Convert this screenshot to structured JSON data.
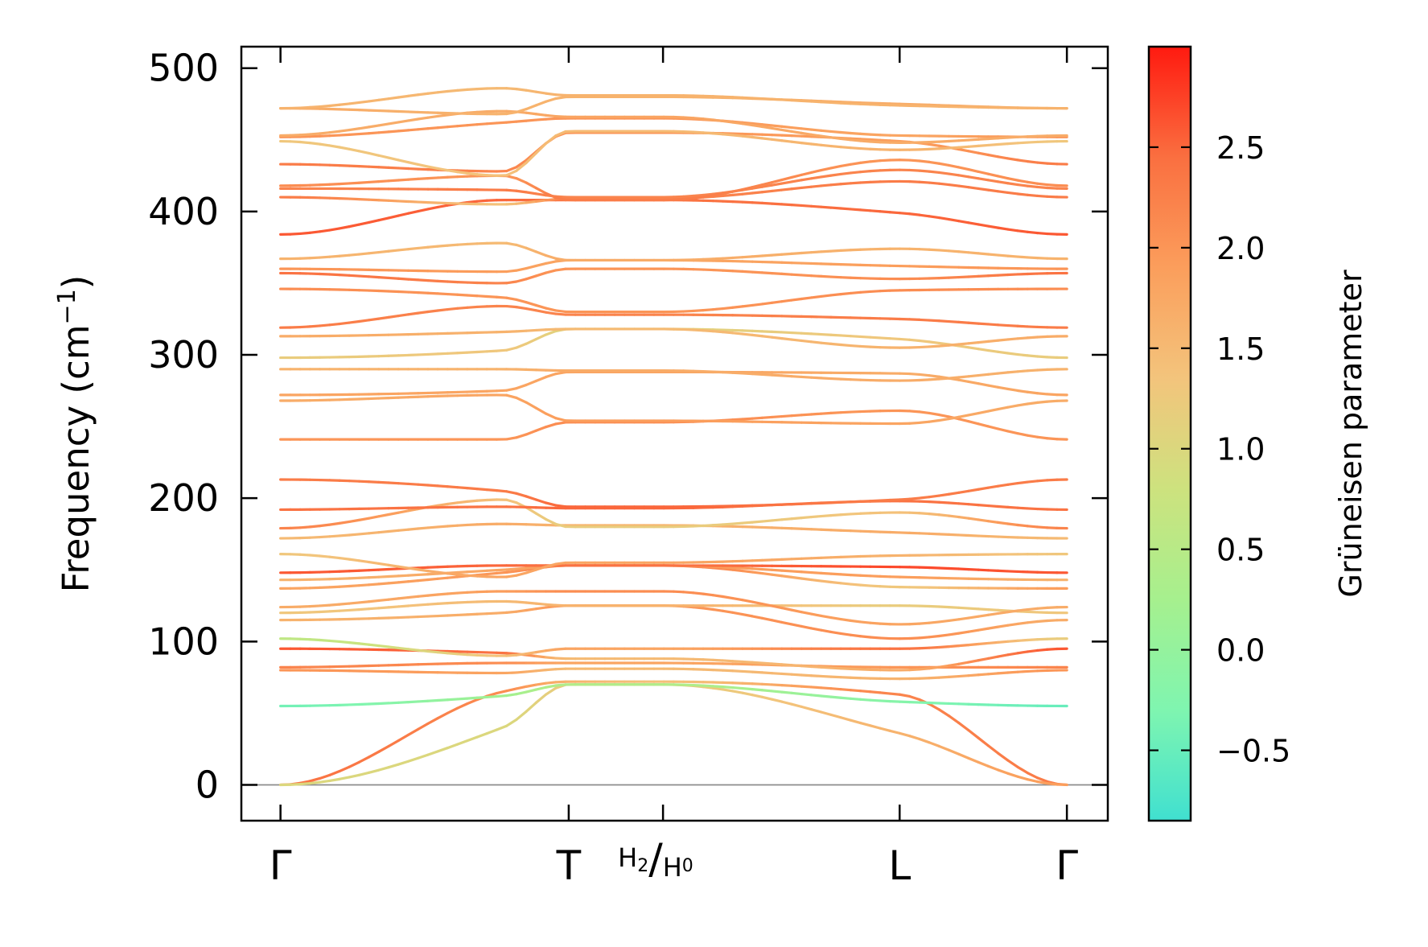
{
  "chart_data": {
    "type": "line",
    "ylabel_main": "Frequency (cm",
    "ylabel_sup": "−1",
    "ylabel_close": ")",
    "xlabel": "",
    "ylim": [
      -25,
      515
    ],
    "yticks": [
      0,
      100,
      200,
      300,
      400,
      500
    ],
    "ytick_labels": [
      "0",
      "100",
      "200",
      "300",
      "400",
      "500"
    ],
    "x_range": [
      -0.22,
      4.65
    ],
    "kpoints": [
      {
        "x": 0,
        "label": "Γ"
      },
      {
        "x": 1.62,
        "label": "T"
      },
      {
        "x": 2.15,
        "label": "H2/H0"
      },
      {
        "x": 3.48,
        "label": "L"
      },
      {
        "x": 4.42,
        "label": "Γ"
      }
    ],
    "kpoint_label_H": {
      "main1": "H",
      "sub1": "2",
      "slash": "/",
      "main2": "H",
      "sub2": "0"
    },
    "zero_line": true,
    "colorbar": {
      "label": "Grüneisen parameter",
      "vmin": -0.85,
      "vmax": 3.0,
      "ticks": [
        -0.5,
        0.0,
        0.5,
        1.0,
        1.5,
        2.0,
        2.5
      ],
      "tick_labels": [
        "−0.5",
        "0.0",
        "0.5",
        "1.0",
        "1.5",
        "2.0",
        "2.5"
      ],
      "colormap": [
        "#40e0d0",
        "#7ff5b0",
        "#a6f08e",
        "#cde27e",
        "#f3c47c",
        "#fb9e5c",
        "#fa6f40",
        "#ff1a10"
      ]
    },
    "branches": [
      {
        "y": [
          0,
          65,
          72,
          72,
          63,
          0
        ],
        "g": [
          2.4,
          2.1,
          1.6,
          1.4,
          2.2,
          2.3
        ]
      },
      {
        "y": [
          0,
          40,
          70,
          70,
          36,
          0
        ],
        "g": [
          1.0,
          1.0,
          1.2,
          1.2,
          1.6,
          1.9
        ]
      },
      {
        "y": [
          55,
          62,
          70,
          70,
          58,
          55
        ],
        "g": [
          -0.4,
          0.2,
          0.4,
          0.4,
          -0.2,
          -0.5
        ]
      },
      {
        "y": [
          80,
          78,
          81,
          81,
          74,
          80
        ],
        "g": [
          2.0,
          1.8,
          1.5,
          1.5,
          1.6,
          2.0
        ]
      },
      {
        "y": [
          82,
          85,
          85,
          85,
          82,
          82
        ],
        "g": [
          2.2,
          2.1,
          1.8,
          1.8,
          2.0,
          2.2
        ]
      },
      {
        "y": [
          95,
          92,
          88,
          88,
          80,
          95
        ],
        "g": [
          2.6,
          2.4,
          1.5,
          1.5,
          1.7,
          2.6
        ]
      },
      {
        "y": [
          102,
          90,
          95,
          95,
          95,
          102
        ],
        "g": [
          0.6,
          1.4,
          1.8,
          1.8,
          2.4,
          1.2
        ]
      },
      {
        "y": [
          115,
          120,
          125,
          125,
          102,
          115
        ],
        "g": [
          1.6,
          1.7,
          2.0,
          2.0,
          2.1,
          1.7
        ]
      },
      {
        "y": [
          120,
          128,
          125,
          125,
          125,
          120
        ],
        "g": [
          1.3,
          1.5,
          1.6,
          1.6,
          1.2,
          1.3
        ]
      },
      {
        "y": [
          124,
          135,
          135,
          135,
          112,
          124
        ],
        "g": [
          1.7,
          1.9,
          2.1,
          2.1,
          1.8,
          1.7
        ]
      },
      {
        "y": [
          137,
          148,
          153,
          153,
          138,
          137
        ],
        "g": [
          1.8,
          2.0,
          2.3,
          2.3,
          1.3,
          1.9
        ]
      },
      {
        "y": [
          143,
          150,
          153,
          153,
          145,
          143
        ],
        "g": [
          1.6,
          1.8,
          1.9,
          1.9,
          1.9,
          1.6
        ]
      },
      {
        "y": [
          148,
          153,
          153,
          153,
          152,
          148
        ],
        "g": [
          2.6,
          2.5,
          2.4,
          2.4,
          2.7,
          2.6
        ]
      },
      {
        "y": [
          161,
          145,
          155,
          155,
          160,
          161
        ],
        "g": [
          1.3,
          1.8,
          1.8,
          1.8,
          1.6,
          1.3
        ]
      },
      {
        "y": [
          172,
          182,
          181,
          181,
          176,
          172
        ],
        "g": [
          1.5,
          1.7,
          1.6,
          1.6,
          1.7,
          1.5
        ]
      },
      {
        "y": [
          179,
          199,
          180,
          180,
          190,
          179
        ],
        "g": [
          2.2,
          1.4,
          1.2,
          1.2,
          1.4,
          2.2
        ]
      },
      {
        "y": [
          192,
          194,
          193,
          193,
          198,
          192
        ],
        "g": [
          2.4,
          2.4,
          2.5,
          2.5,
          2.4,
          2.4
        ]
      },
      {
        "y": [
          213,
          205,
          194,
          194,
          199,
          213
        ],
        "g": [
          2.3,
          2.3,
          2.5,
          2.5,
          2.3,
          2.3
        ]
      },
      {
        "y": [
          241,
          241,
          253,
          253,
          261,
          241
        ],
        "g": [
          2.0,
          2.0,
          2.1,
          2.1,
          2.0,
          2.0
        ]
      },
      {
        "y": [
          268,
          272,
          254,
          254,
          252,
          268
        ],
        "g": [
          1.7,
          1.8,
          1.9,
          1.9,
          1.8,
          1.7
        ]
      },
      {
        "y": [
          272,
          275,
          288,
          288,
          287,
          272
        ],
        "g": [
          1.8,
          1.8,
          1.8,
          1.8,
          1.7,
          1.8
        ]
      },
      {
        "y": [
          290,
          290,
          289,
          289,
          282,
          290
        ],
        "g": [
          1.6,
          1.6,
          1.7,
          1.7,
          1.7,
          1.6
        ]
      },
      {
        "y": [
          298,
          303,
          318,
          318,
          311,
          298
        ],
        "g": [
          1.2,
          1.3,
          1.1,
          1.1,
          1.3,
          1.2
        ]
      },
      {
        "y": [
          313,
          316,
          318,
          318,
          305,
          313
        ],
        "g": [
          1.7,
          1.6,
          1.5,
          1.5,
          1.6,
          1.7
        ]
      },
      {
        "y": [
          319,
          334,
          328,
          328,
          325,
          319
        ],
        "g": [
          2.3,
          2.2,
          2.2,
          2.2,
          2.3,
          2.3
        ]
      },
      {
        "y": [
          346,
          340,
          330,
          330,
          345,
          346
        ],
        "g": [
          2.1,
          2.0,
          2.0,
          2.0,
          2.1,
          2.1
        ]
      },
      {
        "y": [
          357,
          350,
          360,
          360,
          353,
          357
        ],
        "g": [
          2.4,
          2.2,
          2.0,
          2.0,
          2.1,
          2.4
        ]
      },
      {
        "y": [
          360,
          358,
          366,
          366,
          362,
          360
        ],
        "g": [
          2.0,
          1.9,
          1.8,
          1.8,
          1.9,
          2.0
        ]
      },
      {
        "y": [
          367,
          378,
          366,
          366,
          374,
          367
        ],
        "g": [
          1.6,
          1.5,
          1.7,
          1.7,
          1.6,
          1.6
        ]
      },
      {
        "y": [
          384,
          408,
          408,
          408,
          399,
          384
        ],
        "g": [
          2.6,
          2.5,
          2.4,
          2.4,
          2.5,
          2.6
        ]
      },
      {
        "y": [
          410,
          405,
          409,
          409,
          421,
          410
        ],
        "g": [
          2.3,
          1.4,
          2.2,
          2.2,
          2.3,
          2.3
        ]
      },
      {
        "y": [
          416,
          415,
          410,
          410,
          429,
          416
        ],
        "g": [
          2.2,
          2.3,
          2.2,
          2.2,
          2.2,
          2.2
        ]
      },
      {
        "y": [
          418,
          425,
          408,
          408,
          436,
          418
        ],
        "g": [
          2.1,
          2.0,
          2.3,
          2.3,
          2.0,
          2.1
        ]
      },
      {
        "y": [
          433,
          428,
          455,
          455,
          449,
          433
        ],
        "g": [
          2.3,
          2.2,
          2.0,
          2.0,
          1.9,
          2.3
        ]
      },
      {
        "y": [
          449,
          425,
          456,
          456,
          443,
          449
        ],
        "g": [
          1.3,
          1.4,
          1.5,
          1.5,
          1.6,
          1.3
        ]
      },
      {
        "y": [
          452,
          462,
          465,
          465,
          453,
          452
        ],
        "g": [
          2.0,
          2.0,
          2.0,
          2.0,
          1.8,
          2.0
        ]
      },
      {
        "y": [
          453,
          470,
          466,
          466,
          448,
          453
        ],
        "g": [
          1.7,
          1.7,
          1.8,
          1.8,
          1.7,
          1.7
        ]
      },
      {
        "y": [
          472,
          468,
          480,
          480,
          475,
          472
        ],
        "g": [
          1.7,
          1.6,
          1.6,
          1.6,
          1.7,
          1.7
        ]
      },
      {
        "y": [
          472,
          486,
          481,
          481,
          474,
          472
        ],
        "g": [
          1.6,
          1.5,
          1.6,
          1.6,
          1.6,
          1.6
        ]
      }
    ],
    "branch_x": [
      0,
      1.25,
      1.62,
      2.15,
      3.48,
      4.42
    ]
  }
}
